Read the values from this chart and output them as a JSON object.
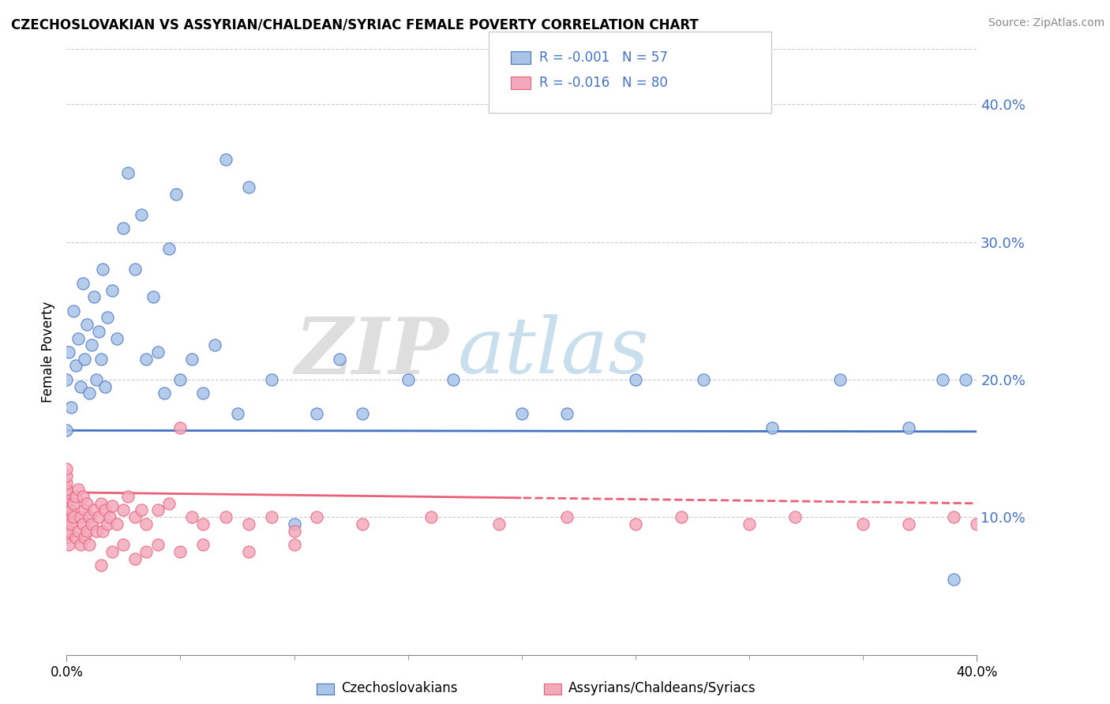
{
  "title": "CZECHOSLOVAKIAN VS ASSYRIAN/CHALDEAN/SYRIAC FEMALE POVERTY CORRELATION CHART",
  "source": "Source: ZipAtlas.com",
  "ylabel": "Female Poverty",
  "xlim": [
    0.0,
    0.4
  ],
  "ylim": [
    0.0,
    0.44
  ],
  "yticks": [
    0.1,
    0.2,
    0.3,
    0.4
  ],
  "ytick_labels": [
    "10.0%",
    "20.0%",
    "30.0%",
    "40.0%"
  ],
  "xticks": [
    0.0,
    0.4
  ],
  "xtick_labels": [
    "0.0%",
    "40.0%"
  ],
  "watermark_zip": "ZIP",
  "watermark_atlas": "atlas",
  "color_czech": "#aac4e8",
  "color_assyrian": "#f4a9bb",
  "color_czech_line": "#4472c4",
  "color_assyrian_line": "#e8607a",
  "color_ytick": "#4472c4",
  "legend_r1": "R = -0.001",
  "legend_n1": "N = 57",
  "legend_r2": "R = -0.016",
  "legend_n2": "N = 80",
  "czech_intercept": 0.163,
  "czech_slope": -0.002,
  "assyrian_intercept": 0.118,
  "assyrian_slope": -0.02,
  "czech_x": [
    0.0,
    0.0,
    0.0,
    0.001,
    0.002,
    0.003,
    0.004,
    0.005,
    0.006,
    0.007,
    0.008,
    0.009,
    0.01,
    0.011,
    0.012,
    0.013,
    0.014,
    0.015,
    0.016,
    0.017,
    0.018,
    0.02,
    0.022,
    0.025,
    0.027,
    0.03,
    0.033,
    0.035,
    0.038,
    0.04,
    0.043,
    0.045,
    0.048,
    0.05,
    0.055,
    0.06,
    0.065,
    0.07,
    0.075,
    0.08,
    0.09,
    0.1,
    0.11,
    0.12,
    0.13,
    0.15,
    0.17,
    0.2,
    0.22,
    0.25,
    0.28,
    0.31,
    0.34,
    0.37,
    0.385,
    0.39,
    0.395
  ],
  "czech_y": [
    0.163,
    0.2,
    0.12,
    0.22,
    0.18,
    0.25,
    0.21,
    0.23,
    0.195,
    0.27,
    0.215,
    0.24,
    0.19,
    0.225,
    0.26,
    0.2,
    0.235,
    0.215,
    0.28,
    0.195,
    0.245,
    0.265,
    0.23,
    0.31,
    0.35,
    0.28,
    0.32,
    0.215,
    0.26,
    0.22,
    0.19,
    0.295,
    0.335,
    0.2,
    0.215,
    0.19,
    0.225,
    0.36,
    0.175,
    0.34,
    0.2,
    0.095,
    0.175,
    0.215,
    0.175,
    0.2,
    0.2,
    0.175,
    0.175,
    0.2,
    0.2,
    0.165,
    0.2,
    0.165,
    0.2,
    0.055,
    0.2
  ],
  "assyrian_x": [
    0.0,
    0.0,
    0.0,
    0.0,
    0.0,
    0.0,
    0.0,
    0.0,
    0.0,
    0.0,
    0.0,
    0.0,
    0.001,
    0.001,
    0.002,
    0.002,
    0.003,
    0.003,
    0.004,
    0.004,
    0.005,
    0.005,
    0.006,
    0.006,
    0.007,
    0.007,
    0.008,
    0.008,
    0.009,
    0.009,
    0.01,
    0.01,
    0.011,
    0.012,
    0.013,
    0.014,
    0.015,
    0.016,
    0.017,
    0.018,
    0.019,
    0.02,
    0.022,
    0.025,
    0.027,
    0.03,
    0.033,
    0.035,
    0.04,
    0.045,
    0.05,
    0.055,
    0.06,
    0.07,
    0.08,
    0.09,
    0.1,
    0.11,
    0.13,
    0.16,
    0.19,
    0.22,
    0.25,
    0.27,
    0.3,
    0.32,
    0.35,
    0.37,
    0.39,
    0.4,
    0.015,
    0.02,
    0.025,
    0.03,
    0.035,
    0.04,
    0.05,
    0.06,
    0.08,
    0.1
  ],
  "assyrian_y": [
    0.085,
    0.095,
    0.1,
    0.105,
    0.108,
    0.112,
    0.115,
    0.118,
    0.12,
    0.125,
    0.13,
    0.135,
    0.08,
    0.09,
    0.095,
    0.105,
    0.1,
    0.11,
    0.085,
    0.115,
    0.09,
    0.12,
    0.08,
    0.1,
    0.095,
    0.115,
    0.085,
    0.105,
    0.09,
    0.11,
    0.08,
    0.1,
    0.095,
    0.105,
    0.09,
    0.1,
    0.11,
    0.09,
    0.105,
    0.095,
    0.1,
    0.108,
    0.095,
    0.105,
    0.115,
    0.1,
    0.105,
    0.095,
    0.105,
    0.11,
    0.165,
    0.1,
    0.095,
    0.1,
    0.095,
    0.1,
    0.09,
    0.1,
    0.095,
    0.1,
    0.095,
    0.1,
    0.095,
    0.1,
    0.095,
    0.1,
    0.095,
    0.095,
    0.1,
    0.095,
    0.065,
    0.075,
    0.08,
    0.07,
    0.075,
    0.08,
    0.075,
    0.08,
    0.075,
    0.08
  ]
}
